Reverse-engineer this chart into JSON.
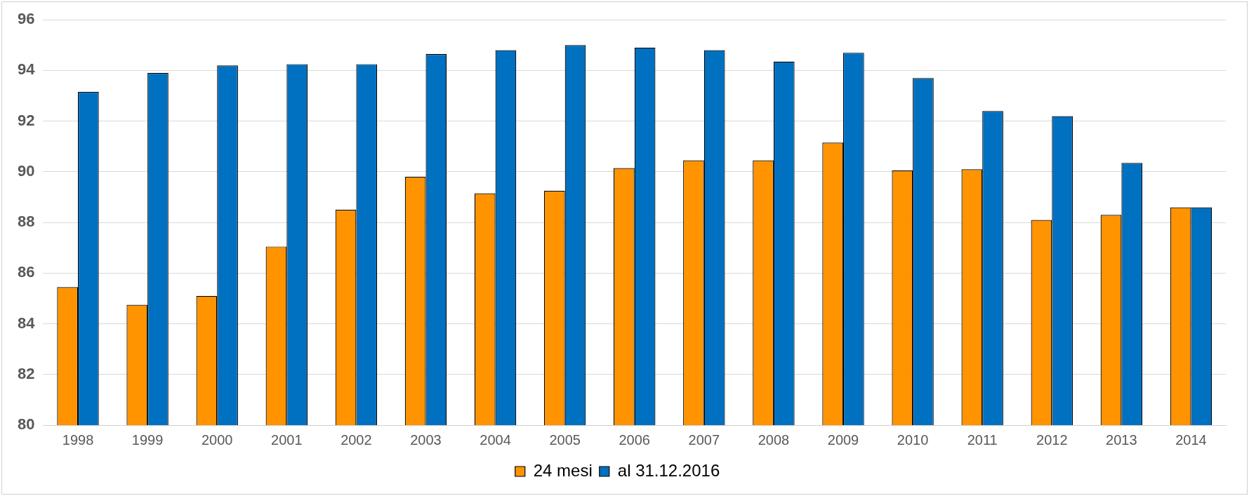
{
  "chart_data": {
    "type": "bar",
    "categories": [
      "1998",
      "1999",
      "2000",
      "2001",
      "2002",
      "2003",
      "2004",
      "2005",
      "2006",
      "2007",
      "2008",
      "2009",
      "2010",
      "2011",
      "2012",
      "2013",
      "2014"
    ],
    "series": [
      {
        "name": "24 mesi",
        "color": "#ff9300",
        "values": [
          85.45,
          84.75,
          85.1,
          87.05,
          88.5,
          89.8,
          89.15,
          89.25,
          90.15,
          90.45,
          90.45,
          91.15,
          90.05,
          90.1,
          88.1,
          88.3,
          88.6
        ]
      },
      {
        "name": "al 31.12.2016",
        "color": "#0070c0",
        "values": [
          93.15,
          93.9,
          94.2,
          94.25,
          94.25,
          94.65,
          94.8,
          95.0,
          94.9,
          94.8,
          94.35,
          94.7,
          93.7,
          92.4,
          92.2,
          90.35,
          88.6
        ]
      }
    ],
    "ylim": [
      80,
      96
    ],
    "yticks": [
      80,
      82,
      84,
      86,
      88,
      90,
      92,
      94,
      96
    ],
    "grid": "y",
    "legend": "bottom"
  }
}
